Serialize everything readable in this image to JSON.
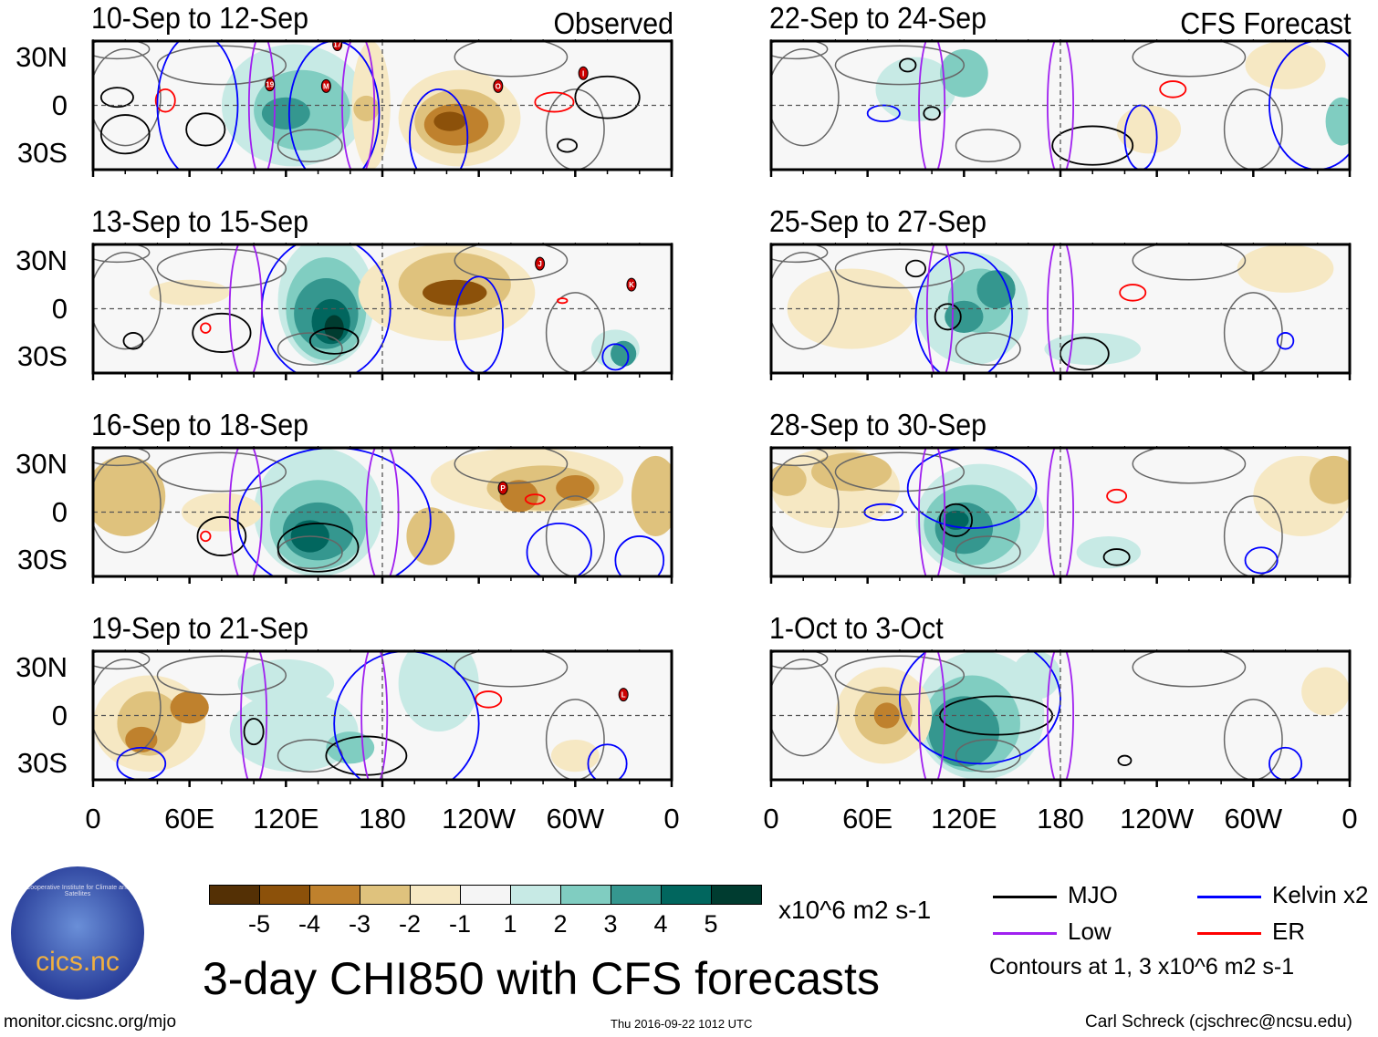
{
  "panels": [
    {
      "title": "10-Sep to 12-Sep",
      "tag": "Observed",
      "storms": [
        "17",
        "19",
        "M",
        "O",
        "I"
      ]
    },
    {
      "title": "13-Sep to 15-Sep",
      "storms": [
        "J",
        "K"
      ]
    },
    {
      "title": "16-Sep to 18-Sep",
      "storms": [
        "P"
      ]
    },
    {
      "title": "19-Sep to 21-Sep",
      "storms": [
        "L"
      ]
    },
    {
      "title": "22-Sep to 24-Sep",
      "tag": "CFS Forecast",
      "storms": []
    },
    {
      "title": "25-Sep to 27-Sep",
      "storms": []
    },
    {
      "title": "28-Sep to 30-Sep",
      "storms": []
    },
    {
      "title": "1-Oct to 3-Oct",
      "storms": []
    }
  ],
  "y_ticks": [
    "30N",
    "0",
    "30S"
  ],
  "x_ticks": [
    "0",
    "60E",
    "120E",
    "180",
    "120W",
    "60W",
    "0"
  ],
  "chart_data": {
    "type": "heatmap",
    "title": "3-day CHI850 with CFS forecasts",
    "units": "x10^6 m2 s-1",
    "colorbar": {
      "labels": [
        "-5",
        "-4",
        "-3",
        "-2",
        "-1",
        "1",
        "2",
        "3",
        "4",
        "5"
      ],
      "colors": [
        "#543005",
        "#8c510a",
        "#bf812d",
        "#dfc27d",
        "#f6e8c3",
        "#f5f5f5",
        "#c7eae5",
        "#80cdc1",
        "#35978f",
        "#01665e",
        "#003c30"
      ]
    },
    "lon_range": [
      0,
      360
    ],
    "lat_range": [
      -40,
      40
    ],
    "legend": [
      {
        "name": "MJO",
        "color": "#000000"
      },
      {
        "name": "Kelvin x2",
        "color": "#0000ff"
      },
      {
        "name": "Low",
        "color": "#a020f0"
      },
      {
        "name": "ER",
        "color": "#ff0000"
      }
    ],
    "contour_note": "Contours at 1, 3 x10^6 m2 s-1"
  },
  "footer": {
    "logo_text": "cics.nc",
    "logo_ring": "Cooperative Institute for Climate and Satellites",
    "url": "monitor.cicsnc.org/mjo",
    "timestamp": "Thu 2016-09-22 1012 UTC",
    "author": "Carl Schreck (cjschrec@ncsu.edu)"
  }
}
